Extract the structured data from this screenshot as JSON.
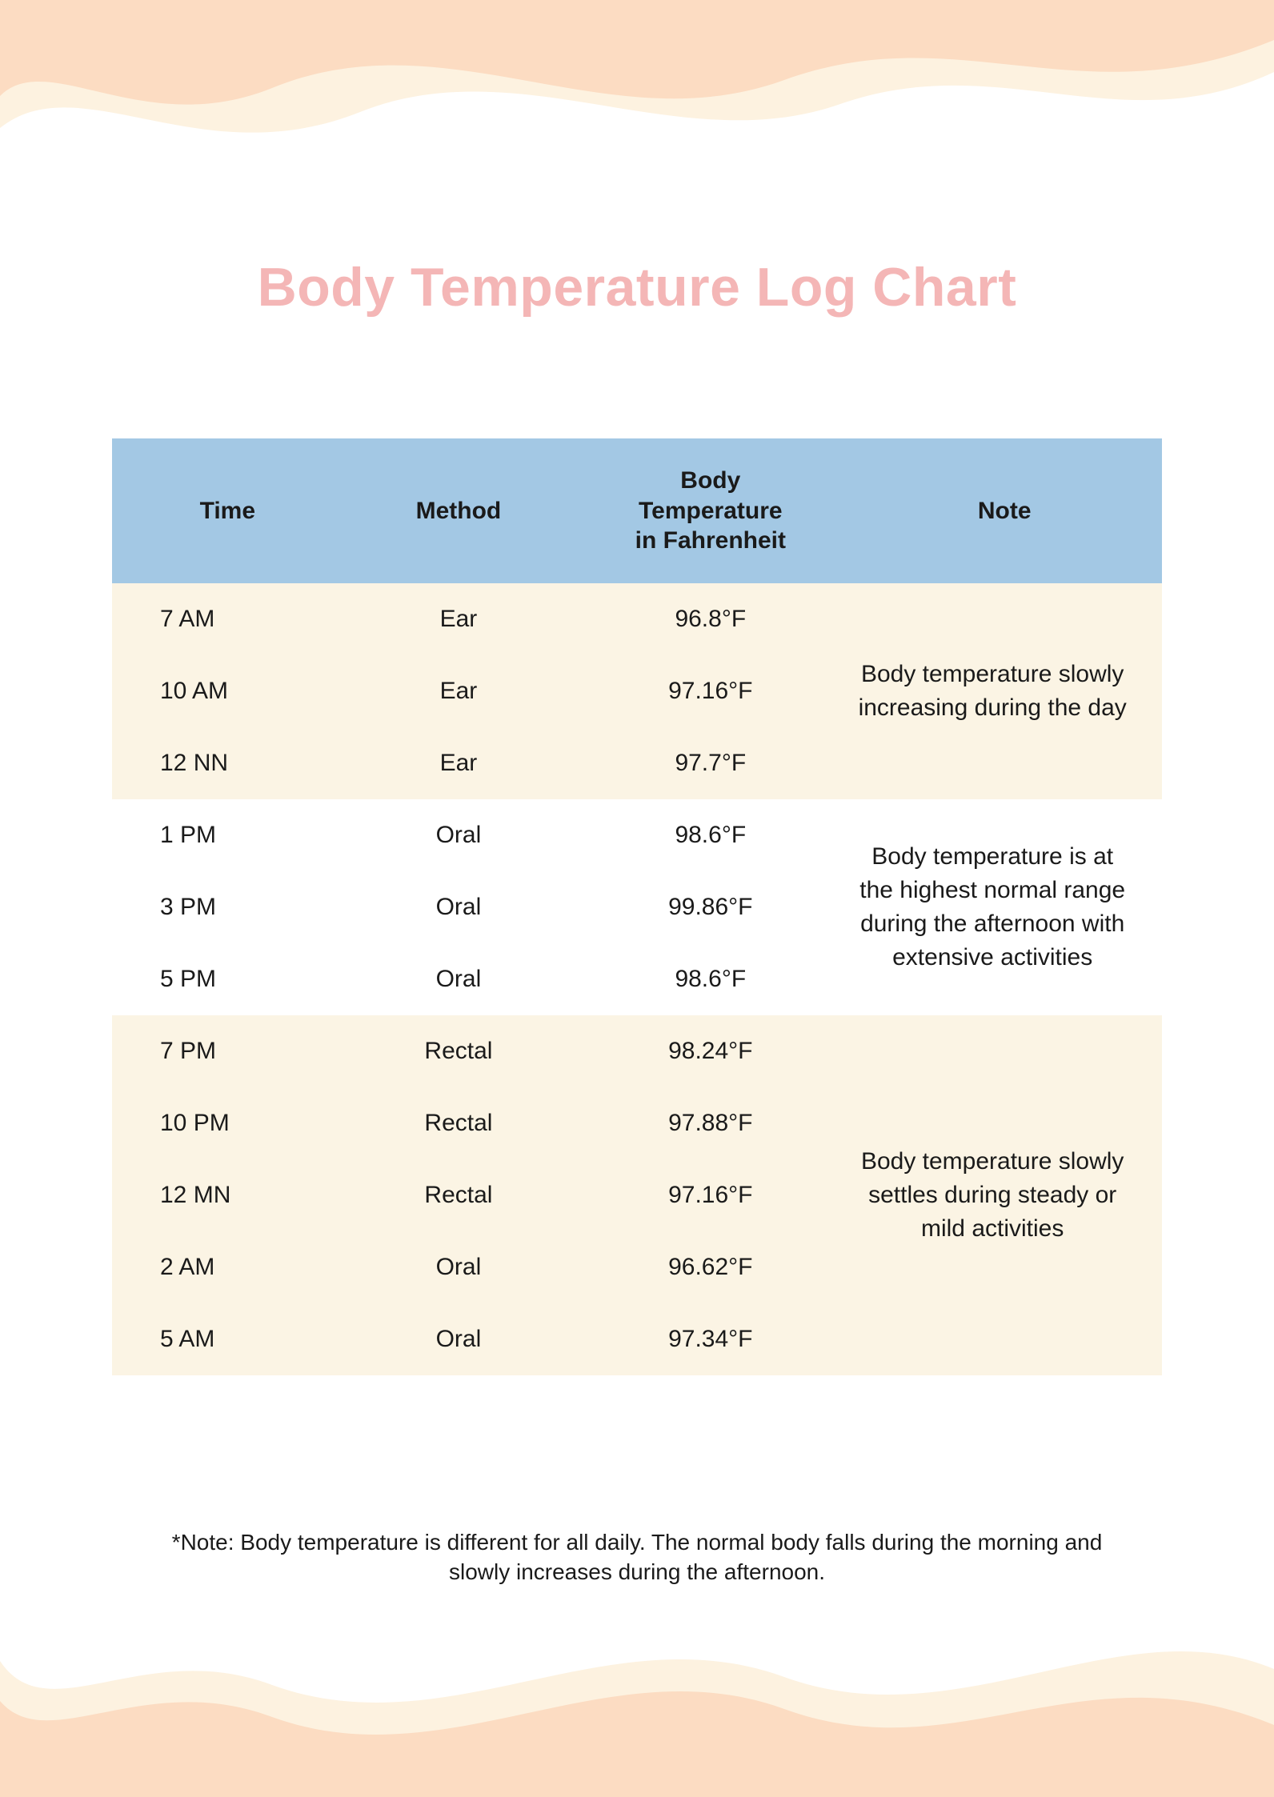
{
  "title": "Body Temperature Log Chart",
  "title_color": "#f4b6b6",
  "colors": {
    "header_bg": "#a3c8e4",
    "row_bg_light": "#fbf4e4",
    "row_bg_white": "#ffffff",
    "wave_peach": "#fcdcc2",
    "wave_cream": "#fdf2e0",
    "text": "#1a1a1a"
  },
  "columns": [
    "Time",
    "Method",
    "Body Temperature in Fahrenheit",
    "Note"
  ],
  "column_widths": [
    "22%",
    "22%",
    "26%",
    "30%"
  ],
  "groups": [
    {
      "bg": "#fbf4e4",
      "note": "Body temperature slowly increasing during the day",
      "rows": [
        {
          "time": "7 AM",
          "method": "Ear",
          "temp": "96.8°F"
        },
        {
          "time": "10 AM",
          "method": "Ear",
          "temp": "97.16°F"
        },
        {
          "time": "12 NN",
          "method": "Ear",
          "temp": "97.7°F"
        }
      ]
    },
    {
      "bg": "#ffffff",
      "note": "Body temperature is at the highest normal range during the afternoon with extensive activities",
      "rows": [
        {
          "time": "1 PM",
          "method": "Oral",
          "temp": "98.6°F"
        },
        {
          "time": "3 PM",
          "method": "Oral",
          "temp": "99.86°F"
        },
        {
          "time": "5 PM",
          "method": "Oral",
          "temp": "98.6°F"
        }
      ]
    },
    {
      "bg": "#fbf4e4",
      "note": "Body temperature slowly settles during steady or mild activities",
      "rows": [
        {
          "time": "7 PM",
          "method": "Rectal",
          "temp": "98.24°F"
        },
        {
          "time": "10 PM",
          "method": "Rectal",
          "temp": "97.88°F"
        },
        {
          "time": "12 MN",
          "method": "Rectal",
          "temp": "97.16°F"
        },
        {
          "time": "2 AM",
          "method": "Oral",
          "temp": "96.62°F"
        },
        {
          "time": "5 AM",
          "method": "Oral",
          "temp": "97.34°F"
        }
      ]
    }
  ],
  "footnote": "*Note: Body temperature is different for all daily. The normal body falls during the morning and slowly increases during the afternoon."
}
